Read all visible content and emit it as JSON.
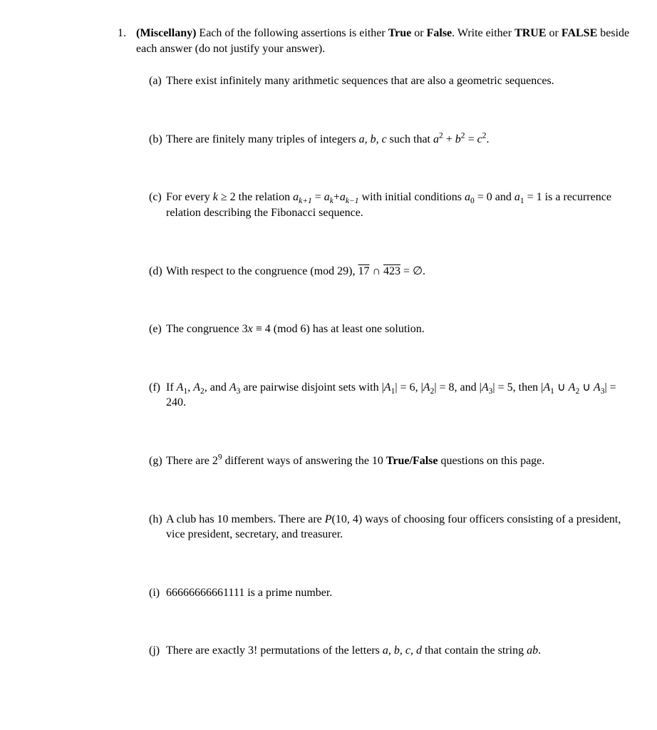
{
  "question": {
    "number": "1.",
    "title_bold": "(Miscellany)",
    "intro_1": " Each of the following assertions is either ",
    "true_label": "True",
    "intro_2": " or ",
    "false_label": "False",
    "intro_3": ". Write either ",
    "true_upper": "TRUE",
    "intro_4": " or ",
    "false_upper": "FALSE",
    "intro_5": " beside each answer (do not justify your answer)."
  },
  "items": {
    "a": {
      "label": "(a)",
      "text": "There exist infinitely many arithmetic sequences that are also a geometric sequences."
    },
    "b": {
      "label": "(b)",
      "text1": "There are finitely many triples of integers ",
      "math1": "a, b, c",
      "text2": " such that ",
      "math2_a": "a",
      "math2_plus": " + ",
      "math2_b": "b",
      "math2_eq": " = ",
      "math2_c": "c",
      "sup2": "2",
      "period": "."
    },
    "c": {
      "label": "(c)",
      "text1": "For every ",
      "k": "k",
      "geq": " ≥ 2 the relation ",
      "a": "a",
      "k1": "k+1",
      "eq": " = ",
      "kk": "k",
      "plus": "+",
      "km1": "k−1",
      "text2": " with initial conditions ",
      "a0": "a",
      "sub0": "0",
      "eq0": " = 0 and ",
      "a1": "a",
      "sub1": "1",
      "eq1": " = 1",
      "text3": " is a recurrence relation describing the Fibonacci sequence."
    },
    "d": {
      "label": "(d)",
      "text1": "With respect to the congruence  (mod 29), ",
      "num1": "17",
      "cap": " ∩ ",
      "num2": "423",
      "eq": " = ∅",
      "period": "."
    },
    "e": {
      "label": "(e)",
      "text1": "The congruence ",
      "three": "3",
      "x": "x",
      "equiv": " ≡ 4 (mod 6) has at least one solution."
    },
    "f": {
      "label": "(f)",
      "text1": "If ",
      "A": "A",
      "s1": "1",
      "comma1": ", ",
      "s2": "2",
      "and1": ", and ",
      "s3": "3",
      "text2": " are pairwise disjoint sets with |",
      "bar1": "| = 6, |",
      "bar2": "| = 8, and |",
      "bar3": "| = 5, then |",
      "cup": " ∪ ",
      "end": "| = 240."
    },
    "g": {
      "label": "(g)",
      "text1": "There are 2",
      "sup9": "9",
      "text2": " different ways of answering the 10 ",
      "tf": "True/False",
      "text3": " questions on this page."
    },
    "h": {
      "label": "(h)",
      "text1": "A club has 10 members. There are ",
      "P": "P",
      "args": "(10, 4)",
      "text2": " ways of choosing four officers consisting of a president, vice president, secretary, and treasurer."
    },
    "i": {
      "label": "(i)",
      "text": "66666666661111 is a prime number."
    },
    "j": {
      "label": "(j)",
      "text1": "There are exactly 3! permutations of the letters ",
      "letters": "a, b, c, d",
      "text2": " that contain the string ",
      "ab": "ab",
      "period": "."
    }
  }
}
